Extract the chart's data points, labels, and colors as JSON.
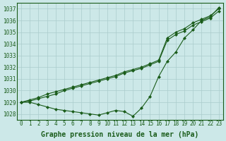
{
  "x": [
    0,
    1,
    2,
    3,
    4,
    5,
    6,
    7,
    8,
    9,
    10,
    11,
    12,
    13,
    14,
    15,
    16,
    17,
    18,
    19,
    20,
    21,
    22,
    23
  ],
  "series": [
    [
      1029.0,
      1029.2,
      1029.4,
      1029.7,
      1029.9,
      1030.1,
      1030.3,
      1030.5,
      1030.7,
      1030.9,
      1031.1,
      1031.3,
      1031.6,
      1031.8,
      1032.0,
      1032.3,
      1032.6,
      1034.5,
      1035.0,
      1035.3,
      1035.8,
      1036.1,
      1036.4,
      1037.0
    ],
    [
      1029.0,
      1029.1,
      1029.3,
      1029.5,
      1029.7,
      1030.0,
      1030.2,
      1030.4,
      1030.6,
      1030.8,
      1031.0,
      1031.2,
      1031.5,
      1031.7,
      1031.9,
      1032.2,
      1032.5,
      1034.3,
      1034.8,
      1035.1,
      1035.6,
      1035.9,
      1036.2,
      1036.8
    ],
    [
      1029.0,
      1029.0,
      1028.8,
      1028.6,
      1028.4,
      1028.3,
      1028.2,
      1028.1,
      1028.0,
      1027.9,
      1028.1,
      1028.3,
      1028.2,
      1027.8,
      1028.5,
      1029.5,
      1031.2,
      1032.5,
      1033.3,
      1034.5,
      1035.2,
      1036.0,
      1036.3,
      1037.1
    ]
  ],
  "line_color": "#1a5c1a",
  "marker": "D",
  "markersize": 2.0,
  "linewidth": 0.8,
  "background_color": "#cce8e8",
  "grid_color": "#aacccc",
  "xlabel": "Graphe pression niveau de la mer (hPa)",
  "xlabel_fontsize": 7,
  "ylim": [
    1027.5,
    1037.5
  ],
  "yticks": [
    1028,
    1029,
    1030,
    1031,
    1032,
    1033,
    1034,
    1035,
    1036,
    1037
  ],
  "xticks": [
    0,
    1,
    2,
    3,
    4,
    5,
    6,
    7,
    8,
    9,
    10,
    11,
    12,
    13,
    14,
    15,
    16,
    17,
    18,
    19,
    20,
    21,
    22,
    23
  ],
  "tick_fontsize": 5.5,
  "figsize": [
    3.2,
    2.0
  ],
  "dpi": 100
}
